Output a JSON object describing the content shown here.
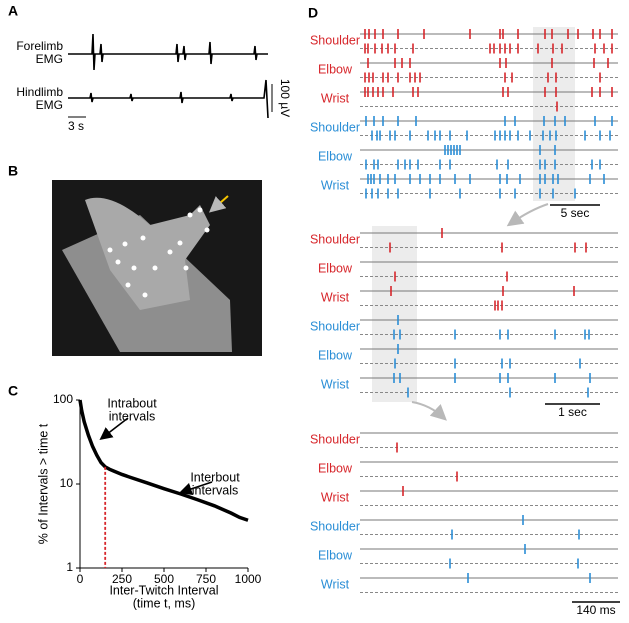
{
  "panels": {
    "a": "A",
    "b": "B",
    "c": "C",
    "d": "D"
  },
  "panel_a": {
    "traces": [
      [
        "Forelimb",
        "EMG"
      ],
      [
        "Hindlimb",
        "EMG"
      ]
    ],
    "time_scale": "3 s",
    "amp_scale": "100 µV"
  },
  "panel_d": {
    "groups": [
      {
        "labels": [
          {
            "text": "Shoulder",
            "color": "#d7262b"
          },
          {
            "text": "Elbow",
            "color": "#d7262b"
          },
          {
            "text": "Wrist",
            "color": "#d7262b"
          },
          {
            "text": "Shoulder",
            "color": "#2a8ed6"
          },
          {
            "text": "Elbow",
            "color": "#2a8ed6"
          },
          {
            "text": "Wrist",
            "color": "#2a8ed6"
          }
        ],
        "scale": "5 sec"
      },
      {
        "labels": [
          {
            "text": "Shoulder",
            "color": "#d7262b"
          },
          {
            "text": "Elbow",
            "color": "#d7262b"
          },
          {
            "text": "Wrist",
            "color": "#d7262b"
          },
          {
            "text": "Shoulder",
            "color": "#2a8ed6"
          },
          {
            "text": "Elbow",
            "color": "#2a8ed6"
          },
          {
            "text": "Wrist",
            "color": "#2a8ed6"
          }
        ],
        "scale": "1 sec"
      },
      {
        "labels": [
          {
            "text": "Shoulder",
            "color": "#d7262b"
          },
          {
            "text": "Elbow",
            "color": "#d7262b"
          },
          {
            "text": "Wrist",
            "color": "#d7262b"
          },
          {
            "text": "Shoulder",
            "color": "#2a8ed6"
          },
          {
            "text": "Elbow",
            "color": "#2a8ed6"
          },
          {
            "text": "Wrist",
            "color": "#2a8ed6"
          }
        ],
        "scale": "140 ms"
      }
    ]
  },
  "chart_data": {
    "type": "line",
    "x": [
      0,
      10,
      25,
      50,
      75,
      100,
      125,
      150,
      175,
      200,
      250,
      300,
      400,
      500,
      600,
      700,
      800,
      900,
      950,
      1000
    ],
    "values": [
      100,
      75,
      55,
      38,
      28,
      22,
      18,
      16,
      15,
      14.3,
      13,
      12,
      10.3,
      8.8,
      7.6,
      6.5,
      5.5,
      4.5,
      4.0,
      3.7
    ],
    "color": "#000000",
    "yscale": "log",
    "xlim": [
      0,
      1000
    ],
    "xticks": [
      0,
      250,
      500,
      750,
      1000
    ],
    "ylim": [
      1,
      100
    ],
    "yticks": [
      1,
      10,
      100
    ],
    "xlabel": [
      "Inter-Twitch Interval",
      "(time t, ms)"
    ],
    "ylabel": "% of Intervals > time t",
    "annotations": [
      [
        "Intrabout",
        "intervals"
      ],
      [
        "Interbout",
        "intervals"
      ]
    ],
    "reference_line": {
      "x": 150,
      "color": "#d7262b"
    }
  }
}
